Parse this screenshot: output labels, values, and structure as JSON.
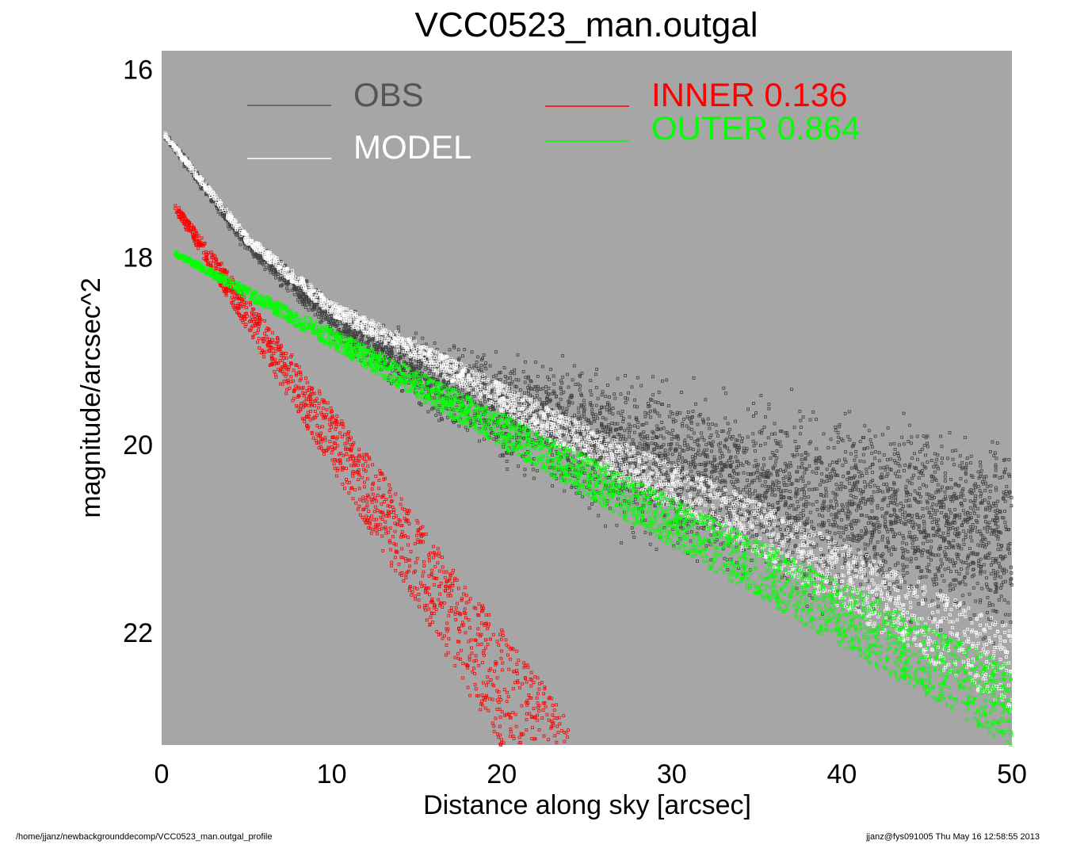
{
  "footer": {
    "left": "/home/jjanz/newbackgrounddecomp/VCC0523_man.outgal_profile",
    "right": "jjanz@fys091005  Thu May 16 12:58:55 2013"
  },
  "chart_data": {
    "type": "scatter",
    "title": "VCC0523_man.outgal",
    "xlabel": "Distance along sky [arcsec]",
    "ylabel": "magnitude/arcsec^2",
    "xlim": [
      0,
      50
    ],
    "ylim": [
      23.2,
      15.8
    ],
    "y_inverted": true,
    "xticks": [
      0,
      10,
      20,
      30,
      40,
      50
    ],
    "yticks": [
      16,
      18,
      20,
      22
    ],
    "grid": false,
    "background_color": "#a6a6a6",
    "legend": {
      "placement": "top",
      "entries": [
        {
          "label": "OBS",
          "color": "#555555"
        },
        {
          "label": "MODEL",
          "color": "#ffffff"
        },
        {
          "label": "INNER  0.136",
          "color": "#ff0000"
        },
        {
          "label": "OUTER  0.864",
          "color": "#00ff00"
        }
      ]
    },
    "series": [
      {
        "name": "OBS",
        "color": "#404040",
        "profile": "sersic",
        "x_range": [
          0.2,
          50
        ],
        "points_x": [
          0.2,
          5,
          10,
          15,
          20,
          25,
          30,
          35,
          40,
          45,
          50
        ],
        "center_y": [
          16.7,
          17.85,
          18.65,
          19.2,
          19.6,
          19.95,
          20.25,
          20.5,
          20.7,
          20.85,
          21.0
        ],
        "scatter": [
          0.05,
          0.1,
          0.2,
          0.4,
          0.6,
          0.8,
          0.9,
          1.0,
          1.1,
          1.1,
          1.2
        ]
      },
      {
        "name": "MODEL",
        "color": "#ffffff",
        "profile": "sersic",
        "x_range": [
          0.2,
          50
        ],
        "points_x": [
          0.2,
          5,
          10,
          15,
          20,
          25,
          30,
          35,
          40,
          45,
          50
        ],
        "center_y": [
          16.7,
          17.8,
          18.55,
          19.0,
          19.5,
          20.0,
          20.45,
          20.9,
          21.4,
          21.9,
          22.4
        ],
        "band_width": [
          0.05,
          0.1,
          0.15,
          0.2,
          0.3,
          0.4,
          0.5,
          0.6,
          0.7,
          0.8,
          0.9
        ]
      },
      {
        "name": "INNER",
        "color": "#ff0000",
        "profile": "exponential",
        "x_range": [
          0.8,
          24
        ],
        "start_y": 17.45,
        "slope": 0.255,
        "band_width_start": 0.1,
        "band_width_end": 1.5
      },
      {
        "name": "OUTER",
        "color": "#00ff00",
        "profile": "exponential",
        "x_range": [
          0.8,
          50
        ],
        "start_y": 17.95,
        "slope": 0.095,
        "band_width_start": 0.05,
        "band_width_end": 0.85
      }
    ]
  }
}
